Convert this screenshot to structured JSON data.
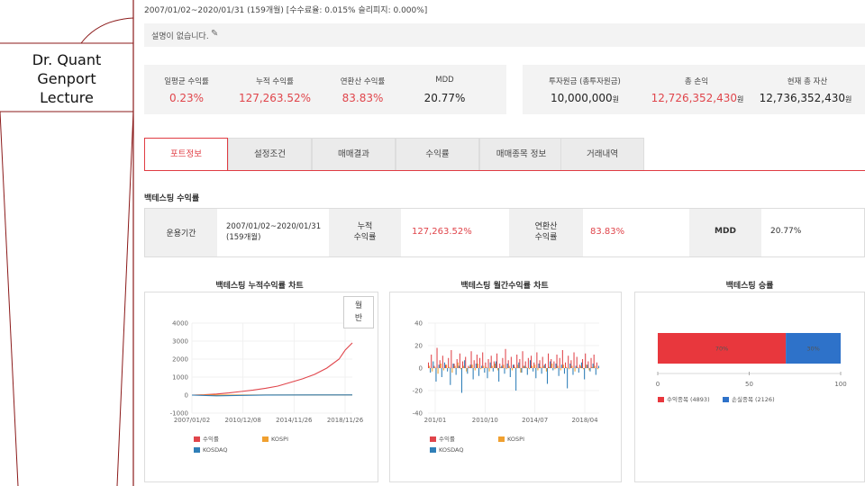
{
  "sidebar": {
    "title_lines": [
      "Dr. Quant",
      "Genport",
      "Lecture"
    ]
  },
  "header": {
    "period": "2007/01/02~2020/01/31 (159개월) [수수료율: 0.015% 슬리피지: 0.000%]",
    "description": "설명이 없습니다."
  },
  "stats_left": [
    {
      "label": "일평균 수익률",
      "value": "0.23%",
      "color": "red"
    },
    {
      "label": "누적 수익률",
      "value": "127,263.52%",
      "color": "red"
    },
    {
      "label": "연환산 수익률",
      "value": "83.83%",
      "color": "red"
    },
    {
      "label": "MDD",
      "value": "20.77%",
      "color": "dark"
    }
  ],
  "stats_right": [
    {
      "label": "투자원금 (총투자원금)",
      "value": "10,000,000",
      "unit": "원",
      "color": "dark"
    },
    {
      "label": "총 손익",
      "value": "12,726,352,430",
      "unit": "원",
      "color": "red"
    },
    {
      "label": "현재 총 자산",
      "value": "12,736,352,430",
      "unit": "원",
      "color": "dark"
    }
  ],
  "tabs": [
    {
      "label": "포트정보",
      "active": true
    },
    {
      "label": "설정조건",
      "active": false
    },
    {
      "label": "매매결과",
      "active": false
    },
    {
      "label": "수익률",
      "active": false
    },
    {
      "label": "매매종목 정보",
      "active": false
    },
    {
      "label": "거래내역",
      "active": false
    }
  ],
  "backtest": {
    "section_title": "백테스팅 수익률",
    "period_label": "운용기간",
    "period_value_1": "2007/01/02~2020/01/31",
    "period_value_2": "(159개월)",
    "cum_label_1": "누적",
    "cum_label_2": "수익률",
    "cum_value": "127,263.52%",
    "ann_label_1": "연환산",
    "ann_label_2": "수익률",
    "ann_value": "83.83%",
    "mdd_label": "MDD",
    "mdd_value": "20.77%"
  },
  "charts": {
    "cumulative_title": "백테스팅 누적수익률 차트",
    "monthly_title": "백테스팅 월간수익률 차트",
    "winrate_title": "백테스팅 승률",
    "month_button": [
      "월",
      "반"
    ]
  },
  "chart_data": [
    {
      "type": "line",
      "title": "백테스팅 누적수익률 차트",
      "x_ticks": [
        "2007/01/02",
        "2010/12/08",
        "2014/11/26",
        "2018/11/26"
      ],
      "y_ticks": [
        4000,
        3000,
        2000,
        1000,
        0,
        -1000
      ],
      "ylim": [
        -1000,
        4000
      ],
      "series": [
        {
          "name": "수익률",
          "color": "#e0454b",
          "x": [
            2007.0,
            2008.0,
            2009.0,
            2010.0,
            2011.0,
            2012.0,
            2013.0,
            2014.0,
            2015.0,
            2016.0,
            2017.0,
            2018.0,
            2019.0,
            2019.5,
            2020.08
          ],
          "y": [
            0,
            20,
            60,
            120,
            200,
            280,
            380,
            500,
            700,
            900,
            1150,
            1500,
            2000,
            2500,
            2900
          ]
        },
        {
          "name": "KOSPI",
          "color": "#f0a030",
          "x": [
            2007.0,
            2020.08
          ],
          "y": [
            0,
            10
          ]
        },
        {
          "name": "KOSDAQ",
          "color": "#2f7fb8",
          "x": [
            2007.0,
            2009.0,
            2013.0,
            2017.0,
            2020.08
          ],
          "y": [
            0,
            -40,
            5,
            10,
            10
          ]
        }
      ]
    },
    {
      "type": "bar",
      "title": "백테스팅 월간수익률 차트",
      "x_ticks": [
        "201/01",
        "2010/10",
        "2014/07",
        "2018/04"
      ],
      "y_ticks": [
        40,
        20,
        0,
        -20,
        -40
      ],
      "ylim": [
        -40,
        40
      ],
      "series": [
        {
          "name": "수익률",
          "color": "#e0454b",
          "values": [
            5,
            12,
            2,
            18,
            7,
            11,
            3,
            9,
            16,
            4,
            8,
            13,
            6,
            10,
            2,
            15,
            7,
            12,
            9,
            14,
            5,
            8,
            11,
            6,
            13,
            4,
            9,
            17,
            7,
            10,
            3,
            12,
            8,
            15,
            6,
            9,
            11,
            5,
            14,
            7,
            10,
            4,
            13,
            8,
            6,
            12,
            9,
            16,
            5,
            11,
            7,
            14,
            10,
            3,
            8,
            13,
            6,
            9,
            12,
            5
          ]
        },
        {
          "name": "KOSPI",
          "color": "#f0a030",
          "values": [
            2,
            -3,
            1,
            -5,
            4,
            -2,
            3,
            1,
            -4,
            2,
            5,
            -1,
            2,
            -3,
            1,
            3,
            -2,
            4,
            -1,
            2,
            1,
            -3,
            2,
            4,
            -2,
            1,
            3,
            -1,
            2,
            -2,
            1,
            3,
            -4,
            2,
            1,
            -1,
            2,
            3,
            -2,
            1,
            2,
            -3,
            1,
            4,
            -1,
            2,
            -2,
            3,
            1,
            -1,
            2,
            -3,
            1,
            2,
            -1,
            3,
            -2,
            1,
            2,
            -1
          ]
        },
        {
          "name": "KOSDAQ",
          "color": "#2f7fb8",
          "values": [
            -4,
            6,
            -12,
            3,
            -8,
            5,
            -3,
            -15,
            4,
            -6,
            2,
            -22,
            7,
            -5,
            3,
            -10,
            4,
            -7,
            2,
            -4,
            -9,
            5,
            -3,
            6,
            -12,
            2,
            -5,
            4,
            -8,
            3,
            -20,
            5,
            -4,
            2,
            -6,
            7,
            -3,
            -9,
            4,
            -5,
            3,
            -14,
            6,
            -2,
            4,
            -7,
            3,
            -5,
            -18,
            4,
            -6,
            2,
            -4,
            5,
            -10,
            3,
            -3,
            4,
            -6,
            2
          ]
        }
      ]
    },
    {
      "type": "bar",
      "title": "백테스팅 승률",
      "orientation": "horizontal-stacked",
      "x_ticks": [
        0,
        50,
        100
      ],
      "xlim": [
        0,
        100
      ],
      "series": [
        {
          "name": "수익종목 (4893)",
          "color": "#e8373d",
          "value": 70,
          "label": "70%"
        },
        {
          "name": "손실종목 (2126)",
          "color": "#2e72c9",
          "value": 30,
          "label": "30%"
        }
      ]
    }
  ]
}
